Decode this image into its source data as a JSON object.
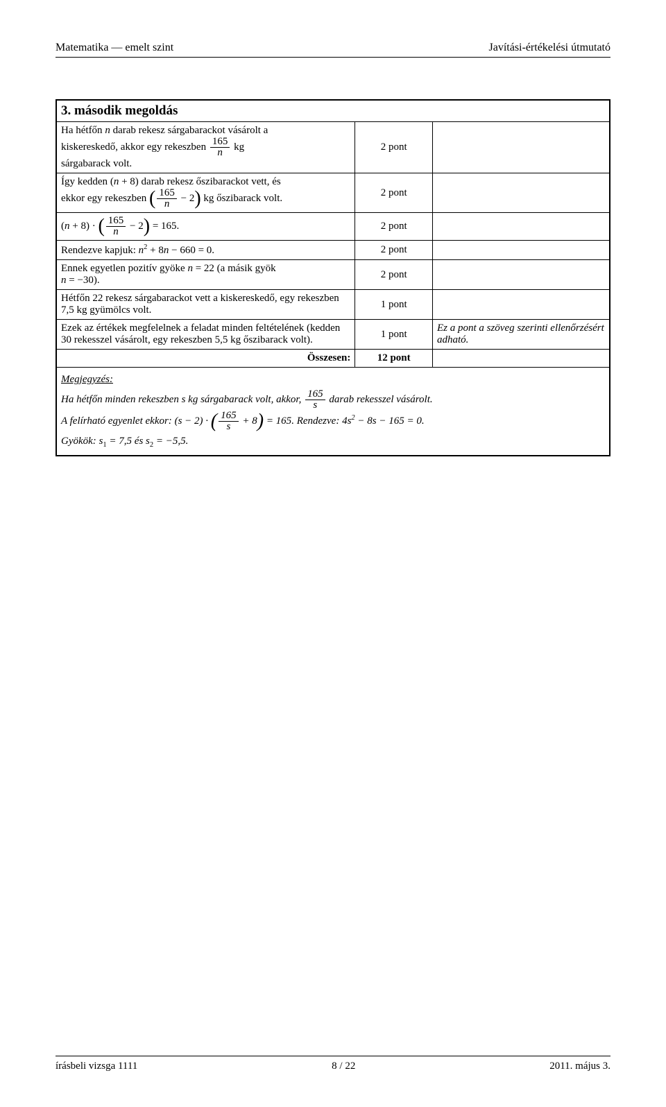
{
  "header": {
    "left": "Matematika — emelt szint",
    "right": "Javítási-értékelési útmutató"
  },
  "title": "3. második megoldás",
  "rows": [
    {
      "pts": "2 pont",
      "note": ""
    },
    {
      "pts": "2 pont",
      "note": ""
    },
    {
      "pts": "2 pont",
      "note": ""
    },
    {
      "desc_pre": "Rendezve kapjuk: ",
      "pts": "2 pont",
      "note": ""
    },
    {
      "pts": "2 pont",
      "note": ""
    },
    {
      "desc": "Hétfőn 22 rekesz sárgabarackot vett a kiskereskedő, egy rekeszben 7,5 kg gyümölcs volt.",
      "pts": "1 pont",
      "note": ""
    },
    {
      "desc": "Ezek az értékek megfelelnek a feladat minden feltételének (kedden 30 rekesszel vásárolt, egy rekeszben 5,5 kg őszibarack volt).",
      "pts": "1 pont",
      "note": "Ez a pont a szöveg szerinti ellenőrzésért adható."
    }
  ],
  "total": {
    "label": "Összesen:",
    "pts": "12 pont"
  },
  "note_heading": "Megjegyzés:",
  "note_lines": {
    "l1a": "Ha hétfőn minden rekeszben  s kg sárgabarack volt, akkor, ",
    "l1b": " darab rekesszel vásárolt.",
    "l2a": "A felírható egyenlet ekkor: ",
    "l2b": ". Rendezve: ",
    "l3a": "Gyökök: ",
    "l3b": " és "
  },
  "misc": {
    "row0a": "Ha hétfőn ",
    "row0b": " darab rekesz sárgabarackot vásárolt a",
    "row0c": "kiskereskedő, akkor egy rekeszben ",
    "row0d": " kg",
    "row0e": "sárgabarack volt.",
    "row1a": "Így kedden ",
    "row1b": " darab rekesz őszibarackot vett, és",
    "row1c": "ekkor egy rekeszben ",
    "row1d": " kg őszibarack volt.",
    "row4a": "Ennek egyetlen pozitív gyöke ",
    "row4b": "  (a másik gyök",
    "row4c": ")."
  },
  "footer": {
    "left": "írásbeli vizsga 1111",
    "center": "8 / 22",
    "right": "2011. május 3."
  }
}
